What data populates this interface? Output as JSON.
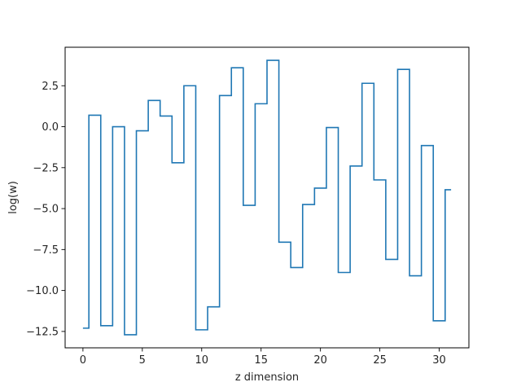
{
  "chart_data": {
    "type": "line",
    "step": true,
    "title": "",
    "xlabel": "z dimension",
    "ylabel": "log(w)",
    "xlim": [
      -1.5,
      32.5
    ],
    "ylim": [
      -13.5,
      4.85
    ],
    "xticks": [
      0,
      5,
      10,
      15,
      20,
      25,
      30
    ],
    "xtick_labels": [
      "0",
      "5",
      "10",
      "15",
      "20",
      "25",
      "30"
    ],
    "yticks": [
      2.5,
      0.0,
      -2.5,
      -5.0,
      -7.5,
      -10.0,
      -12.5
    ],
    "ytick_labels": [
      "2.5",
      "0.0",
      "−2.5",
      "−5.0",
      "−7.5",
      "−10.0",
      "−12.5"
    ],
    "grid": false,
    "line_color": "#1f77b4",
    "x": [
      0,
      1,
      2,
      3,
      4,
      5,
      6,
      7,
      8,
      9,
      10,
      11,
      12,
      13,
      14,
      15,
      16,
      17,
      18,
      19,
      20,
      21,
      22,
      23,
      24,
      25,
      26,
      27,
      28,
      29,
      30,
      31
    ],
    "values": [
      -12.3,
      0.7,
      -12.15,
      0.0,
      -12.7,
      -0.25,
      1.6,
      0.65,
      -2.2,
      2.5,
      -12.4,
      -11.0,
      1.9,
      3.6,
      -4.8,
      1.4,
      4.05,
      -7.05,
      -8.6,
      -4.75,
      -3.75,
      -0.05,
      -8.9,
      -2.4,
      2.65,
      -3.25,
      -8.1,
      3.5,
      -9.1,
      -1.15,
      -11.85,
      -3.85
    ]
  }
}
